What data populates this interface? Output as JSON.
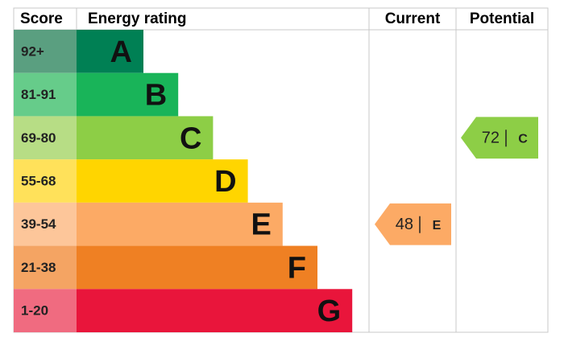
{
  "header": {
    "score": "Score",
    "rating": "Energy rating",
    "current": "Current",
    "potential": "Potential"
  },
  "bands": [
    {
      "score": "92+",
      "letter": "A",
      "color": "#008054",
      "score_color": "#5a9f80"
    },
    {
      "score": "81-91",
      "letter": "B",
      "color": "#19b459",
      "score_color": "#66cc8a"
    },
    {
      "score": "69-80",
      "letter": "C",
      "color": "#8dce46",
      "score_color": "#b7dd85"
    },
    {
      "score": "55-68",
      "letter": "D",
      "color": "#ffd500",
      "score_color": "#ffe15a"
    },
    {
      "score": "39-54",
      "letter": "E",
      "color": "#fcaa65",
      "score_color": "#fdc69a"
    },
    {
      "score": "21-38",
      "letter": "F",
      "color": "#ef8023",
      "score_color": "#f4a463"
    },
    {
      "score": "1-20",
      "letter": "G",
      "color": "#e9153b",
      "score_color": "#f06b80"
    }
  ],
  "current": {
    "value": 48,
    "letter": "E"
  },
  "potential": {
    "value": 72,
    "letter": "C"
  }
}
